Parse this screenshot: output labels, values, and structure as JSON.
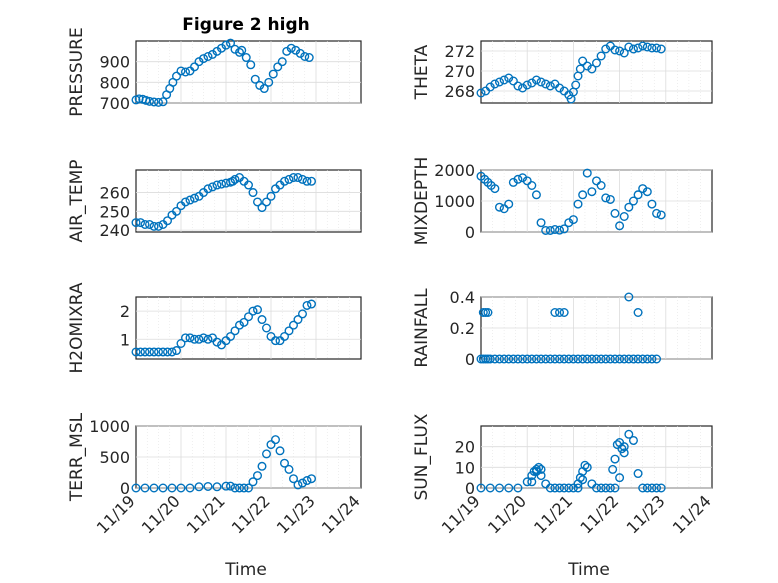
{
  "figure": {
    "title": "Figure 2 high",
    "xlabel": "Time",
    "x_tick_labels": [
      "11/19",
      "11/20",
      "11/21",
      "11/22",
      "11/23",
      "11/24"
    ]
  },
  "chart_data": [
    {
      "type": "scatter",
      "ylabel": "PRESSURE",
      "xlim": [
        0,
        5
      ],
      "ylim": [
        700,
        1000
      ],
      "yticks": [
        700,
        800,
        900
      ],
      "x": [
        0.0,
        0.07,
        0.15,
        0.22,
        0.3,
        0.4,
        0.5,
        0.6,
        0.68,
        0.75,
        0.82,
        0.9,
        1.0,
        1.1,
        1.2,
        1.3,
        1.4,
        1.5,
        1.6,
        1.7,
        1.8,
        1.9,
        2.0,
        2.1,
        2.2,
        2.3,
        2.35,
        2.45,
        2.55,
        2.65,
        2.75,
        2.85,
        2.95,
        3.05,
        3.15,
        3.25,
        3.35,
        3.45,
        3.55,
        3.65,
        3.75,
        3.85
      ],
      "y": [
        715,
        720,
        718,
        713,
        708,
        705,
        703,
        706,
        740,
        770,
        800,
        830,
        855,
        850,
        855,
        875,
        900,
        915,
        925,
        935,
        950,
        965,
        980,
        990,
        960,
        945,
        955,
        920,
        885,
        815,
        785,
        770,
        800,
        840,
        875,
        900,
        950,
        965,
        955,
        940,
        925,
        920
      ]
    },
    {
      "type": "scatter",
      "ylabel": "THETA",
      "xlim": [
        0,
        5
      ],
      "ylim": [
        266.8,
        273.0
      ],
      "yticks": [
        268,
        270,
        272
      ],
      "x": [
        0.0,
        0.1,
        0.2,
        0.3,
        0.4,
        0.5,
        0.6,
        0.7,
        0.8,
        0.9,
        1.0,
        1.1,
        1.2,
        1.3,
        1.4,
        1.5,
        1.6,
        1.7,
        1.8,
        1.9,
        1.95,
        2.0,
        2.05,
        2.1,
        2.15,
        2.2,
        2.3,
        2.4,
        2.5,
        2.6,
        2.7,
        2.8,
        2.9,
        3.0,
        3.1,
        3.2,
        3.3,
        3.4,
        3.5,
        3.6,
        3.7,
        3.8,
        3.9
      ],
      "y": [
        267.8,
        268.0,
        268.4,
        268.7,
        268.9,
        269.1,
        269.3,
        269.0,
        268.5,
        268.3,
        268.6,
        268.8,
        269.1,
        268.9,
        268.7,
        268.5,
        268.7,
        268.3,
        268.0,
        267.6,
        267.2,
        267.9,
        268.6,
        269.5,
        270.2,
        271.0,
        270.5,
        270.2,
        270.8,
        271.5,
        272.2,
        272.5,
        272.1,
        272.0,
        271.8,
        272.4,
        272.2,
        272.3,
        272.5,
        272.4,
        272.3,
        272.3,
        272.2
      ]
    },
    {
      "type": "scatter",
      "ylabel": "AIR_TEMP",
      "xlim": [
        0,
        5
      ],
      "ylim": [
        239,
        272
      ],
      "yticks": [
        240,
        250,
        260
      ],
      "x": [
        0.0,
        0.1,
        0.2,
        0.3,
        0.4,
        0.5,
        0.6,
        0.7,
        0.8,
        0.9,
        1.0,
        1.1,
        1.2,
        1.3,
        1.4,
        1.5,
        1.6,
        1.7,
        1.8,
        1.9,
        2.0,
        2.1,
        2.15,
        2.2,
        2.3,
        2.4,
        2.5,
        2.6,
        2.7,
        2.8,
        2.9,
        3.0,
        3.1,
        3.2,
        3.3,
        3.4,
        3.5,
        3.6,
        3.7,
        3.8,
        3.9
      ],
      "y": [
        244,
        244,
        243,
        243,
        242,
        242,
        243,
        245,
        248,
        250,
        253,
        255,
        256,
        257,
        258,
        260,
        262,
        263,
        264,
        264.5,
        265,
        265.5,
        266,
        267,
        268,
        266,
        264,
        260,
        255,
        252,
        255,
        258,
        262,
        264,
        266,
        267,
        268,
        268,
        267,
        266,
        266
      ]
    },
    {
      "type": "scatter",
      "ylabel": "MIXDEPTH",
      "xlim": [
        0,
        5
      ],
      "ylim": [
        0,
        2000
      ],
      "yticks": [
        0,
        1000,
        2000
      ],
      "x": [
        0.0,
        0.08,
        0.15,
        0.22,
        0.3,
        0.4,
        0.5,
        0.6,
        0.7,
        0.8,
        0.9,
        1.0,
        1.1,
        1.2,
        1.3,
        1.4,
        1.5,
        1.6,
        1.7,
        1.8,
        1.9,
        2.0,
        2.1,
        2.2,
        2.3,
        2.4,
        2.5,
        2.6,
        2.7,
        2.8,
        2.9,
        3.0,
        3.1,
        3.2,
        3.3,
        3.4,
        3.5,
        3.6,
        3.7,
        3.8,
        3.9
      ],
      "y": [
        1800,
        1700,
        1600,
        1500,
        1400,
        800,
        750,
        900,
        1600,
        1700,
        1750,
        1650,
        1500,
        1200,
        300,
        50,
        50,
        80,
        60,
        100,
        300,
        400,
        900,
        1200,
        1900,
        1300,
        1650,
        1500,
        1100,
        1050,
        600,
        200,
        500,
        800,
        1000,
        1200,
        1400,
        1300,
        900,
        600,
        550
      ]
    },
    {
      "type": "scatter",
      "ylabel": "H2OMIXRA",
      "xlim": [
        0,
        5
      ],
      "ylim": [
        0.3,
        2.5
      ],
      "yticks": [
        1,
        2
      ],
      "x": [
        0.0,
        0.1,
        0.2,
        0.3,
        0.4,
        0.5,
        0.6,
        0.7,
        0.8,
        0.9,
        1.0,
        1.1,
        1.2,
        1.3,
        1.4,
        1.5,
        1.6,
        1.7,
        1.8,
        1.9,
        2.0,
        2.1,
        2.2,
        2.3,
        2.4,
        2.5,
        2.6,
        2.7,
        2.8,
        2.9,
        3.0,
        3.1,
        3.2,
        3.3,
        3.4,
        3.5,
        3.6,
        3.7,
        3.8,
        3.9
      ],
      "y": [
        0.55,
        0.55,
        0.55,
        0.55,
        0.55,
        0.55,
        0.55,
        0.55,
        0.55,
        0.6,
        0.85,
        1.05,
        1.05,
        1.0,
        1.0,
        1.05,
        1.0,
        1.05,
        0.9,
        0.8,
        0.95,
        1.1,
        1.3,
        1.5,
        1.6,
        1.8,
        2.0,
        2.05,
        1.7,
        1.4,
        1.1,
        0.95,
        0.95,
        1.1,
        1.3,
        1.5,
        1.7,
        1.9,
        2.2,
        2.25
      ]
    },
    {
      "type": "scatter",
      "ylabel": "RAINFALL",
      "xlim": [
        0,
        5
      ],
      "ylim": [
        0,
        0.4
      ],
      "yticks": [
        0,
        0.2,
        0.4
      ],
      "x": [
        0.0,
        0.05,
        0.1,
        0.15,
        0.2,
        0.3,
        0.4,
        0.5,
        0.6,
        0.7,
        0.8,
        0.9,
        1.0,
        1.1,
        1.2,
        1.3,
        1.4,
        1.5,
        1.6,
        1.7,
        1.8,
        1.9,
        2.0,
        2.1,
        2.2,
        2.3,
        2.4,
        2.5,
        2.6,
        2.7,
        2.8,
        2.9,
        3.0,
        3.1,
        3.2,
        3.3,
        3.4,
        3.5,
        3.6,
        3.7,
        3.8,
        0.05,
        0.1,
        0.15,
        1.6,
        1.7,
        1.8,
        3.2,
        3.4
      ],
      "y": [
        0,
        0,
        0,
        0,
        0,
        0,
        0,
        0,
        0,
        0,
        0,
        0,
        0,
        0,
        0,
        0,
        0,
        0,
        0,
        0,
        0,
        0,
        0,
        0,
        0,
        0,
        0,
        0,
        0,
        0,
        0,
        0,
        0,
        0,
        0,
        0,
        0,
        0,
        0,
        0,
        0,
        0.3,
        0.3,
        0.3,
        0.3,
        0.3,
        0.3,
        0.4,
        0.3
      ]
    },
    {
      "type": "scatter",
      "ylabel": "TERR_MSL",
      "xlim": [
        0,
        5
      ],
      "ylim": [
        0,
        1000
      ],
      "yticks": [
        0,
        500,
        1000
      ],
      "x": [
        0.0,
        0.2,
        0.4,
        0.6,
        0.8,
        1.0,
        1.2,
        1.4,
        1.6,
        1.8,
        2.0,
        2.1,
        2.2,
        2.3,
        2.4,
        2.5,
        2.6,
        2.7,
        2.8,
        2.9,
        3.0,
        3.1,
        3.2,
        3.3,
        3.4,
        3.5,
        3.6,
        3.7,
        3.8,
        3.9
      ],
      "y": [
        0,
        0,
        0,
        0,
        0,
        0,
        0,
        20,
        25,
        20,
        30,
        30,
        0,
        0,
        0,
        0,
        100,
        200,
        350,
        550,
        700,
        780,
        600,
        400,
        300,
        150,
        50,
        80,
        120,
        150
      ]
    },
    {
      "type": "scatter",
      "ylabel": "SUN_FLUX",
      "xlim": [
        0,
        5
      ],
      "ylim": [
        0,
        30
      ],
      "yticks": [
        0,
        10,
        20
      ],
      "x": [
        0.0,
        0.2,
        0.4,
        0.6,
        0.8,
        1.0,
        1.1,
        1.2,
        1.3,
        1.4,
        1.5,
        1.6,
        1.7,
        1.8,
        1.9,
        2.0,
        2.1,
        2.2,
        2.3,
        2.4,
        2.5,
        2.6,
        2.7,
        2.8,
        2.9,
        3.0,
        3.1,
        3.2,
        3.3,
        3.4,
        3.5,
        3.6,
        3.7,
        3.8,
        3.9,
        1.1,
        1.15,
        1.2,
        1.25,
        1.3,
        2.1,
        2.15,
        2.2,
        2.25,
        2.85,
        2.9,
        2.95,
        3.0,
        3.05,
        3.1
      ],
      "y": [
        0,
        0,
        0,
        0,
        0,
        3,
        6,
        8,
        9,
        2,
        0,
        0,
        0,
        0,
        0,
        0,
        0,
        4,
        10,
        2,
        0,
        0,
        0,
        0,
        0,
        5,
        20,
        26,
        23,
        7,
        0,
        0,
        0,
        0,
        0,
        3,
        8,
        9,
        10,
        6,
        2,
        5,
        8,
        11,
        9,
        14,
        21,
        22,
        19,
        17
      ]
    }
  ]
}
